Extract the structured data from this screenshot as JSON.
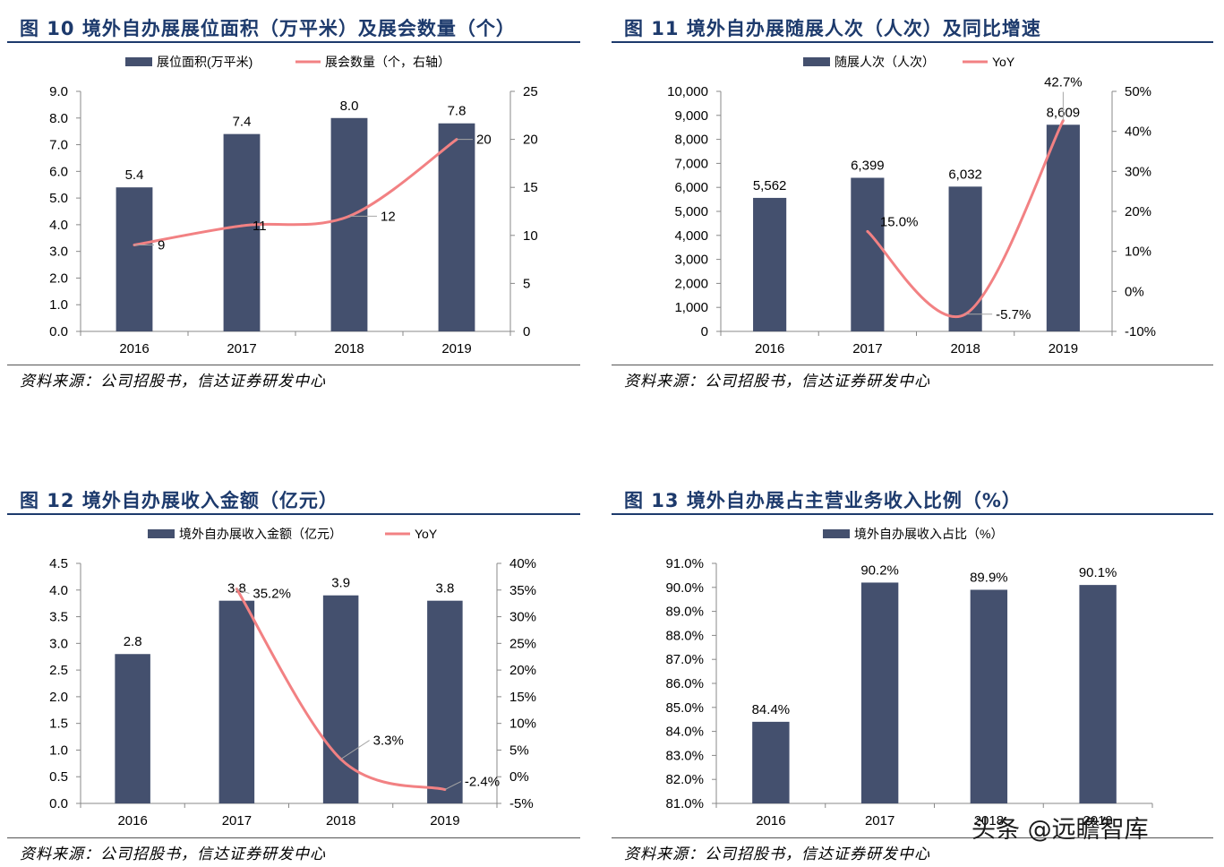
{
  "colors": {
    "bar": "#44506e",
    "line": "#f28183",
    "title": "#1d3a6c"
  },
  "panels": [
    {
      "title": "图 10  境外自办展展位面积（万平米）及展会数量（个）",
      "source": "资料来源：公司招股书，信达证券研发中心"
    },
    {
      "title": "图 11  境外自办展随展人次（人次）及同比增速",
      "source": "资料来源：公司招股书，信达证券研发中心"
    },
    {
      "title": "图 12  境外自办展收入金额（亿元）",
      "source": "资料来源：公司招股书，信达证券研发中心"
    },
    {
      "title": "图 13  境外自办展占主营业务收入比例（%）",
      "source": "资料来源：公司招股书，信达证券研发中心"
    }
  ],
  "watermark": "头条 @远瞻智库",
  "chart_data": [
    {
      "type": "bar",
      "categories": [
        "2016",
        "2017",
        "2018",
        "2019"
      ],
      "series": [
        {
          "name": "展位面积(万平米)",
          "type": "bar",
          "axis": "left",
          "values": [
            5.4,
            7.4,
            8.0,
            7.8
          ],
          "labels": [
            "5.4",
            "7.4",
            "8.0",
            "7.8"
          ]
        },
        {
          "name": "展会数量（个，右轴）",
          "type": "line",
          "axis": "right",
          "values": [
            9,
            11,
            12,
            20
          ],
          "labels": [
            "9",
            "11",
            "12",
            "20"
          ]
        }
      ],
      "y_left": {
        "min": 0,
        "max": 9,
        "ticks": [
          "0.0",
          "1.0",
          "2.0",
          "3.0",
          "4.0",
          "5.0",
          "6.0",
          "7.0",
          "8.0",
          "9.0"
        ]
      },
      "y_right": {
        "min": 0,
        "max": 25,
        "ticks": [
          "0",
          "5",
          "10",
          "15",
          "20",
          "25"
        ]
      },
      "legend": "top-center"
    },
    {
      "type": "bar",
      "categories": [
        "2016",
        "2017",
        "2018",
        "2019"
      ],
      "series": [
        {
          "name": "随展人次（人次）",
          "type": "bar",
          "axis": "left",
          "values": [
            5562,
            6399,
            6032,
            8609
          ],
          "labels": [
            "5,562",
            "6,399",
            "6,032",
            "8,609"
          ]
        },
        {
          "name": "YoY",
          "type": "line",
          "axis": "right",
          "x": [
            "2017",
            "2018",
            "2019"
          ],
          "values": [
            15.0,
            -5.7,
            42.7
          ],
          "labels": [
            "15.0%",
            "-5.7%",
            "42.7%"
          ]
        }
      ],
      "y_left": {
        "min": 0,
        "max": 10000,
        "ticks": [
          "0",
          "1,000",
          "2,000",
          "3,000",
          "4,000",
          "5,000",
          "6,000",
          "7,000",
          "8,000",
          "9,000",
          "10,000"
        ]
      },
      "y_right": {
        "min": -10,
        "max": 50,
        "ticks": [
          "-10%",
          "0%",
          "10%",
          "20%",
          "30%",
          "40%",
          "50%"
        ]
      },
      "legend": "top-center"
    },
    {
      "type": "bar",
      "categories": [
        "2016",
        "2017",
        "2018",
        "2019"
      ],
      "series": [
        {
          "name": "境外自办展收入金额（亿元）",
          "type": "bar",
          "axis": "left",
          "values": [
            2.8,
            3.8,
            3.9,
            3.8
          ],
          "labels": [
            "2.8",
            "3.8",
            "3.9",
            "3.8"
          ]
        },
        {
          "name": "YoY",
          "type": "line",
          "axis": "right",
          "x": [
            "2017",
            "2018",
            "2019"
          ],
          "values": [
            35.2,
            3.3,
            -2.4
          ],
          "labels": [
            "35.2%",
            "3.3%",
            "-2.4%"
          ]
        }
      ],
      "y_left": {
        "min": 0,
        "max": 4.5,
        "ticks": [
          "0.0",
          "0.5",
          "1.0",
          "1.5",
          "2.0",
          "2.5",
          "3.0",
          "3.5",
          "4.0",
          "4.5"
        ]
      },
      "y_right": {
        "min": -5,
        "max": 40,
        "ticks": [
          "-5%",
          "0%",
          "5%",
          "10%",
          "15%",
          "20%",
          "25%",
          "30%",
          "35%",
          "40%"
        ]
      },
      "legend": "top-center"
    },
    {
      "type": "bar",
      "categories": [
        "2016",
        "2017",
        "2018",
        "2019"
      ],
      "series": [
        {
          "name": "境外自办展收入占比（%）",
          "type": "bar",
          "axis": "left",
          "values": [
            84.4,
            90.2,
            89.9,
            90.1
          ],
          "labels": [
            "84.4%",
            "90.2%",
            "89.9%",
            "90.1%"
          ]
        }
      ],
      "y_left": {
        "min": 81,
        "max": 91,
        "ticks": [
          "81.0%",
          "82.0%",
          "83.0%",
          "84.0%",
          "85.0%",
          "86.0%",
          "87.0%",
          "88.0%",
          "89.0%",
          "90.0%",
          "91.0%"
        ]
      },
      "legend": "top-center"
    }
  ]
}
